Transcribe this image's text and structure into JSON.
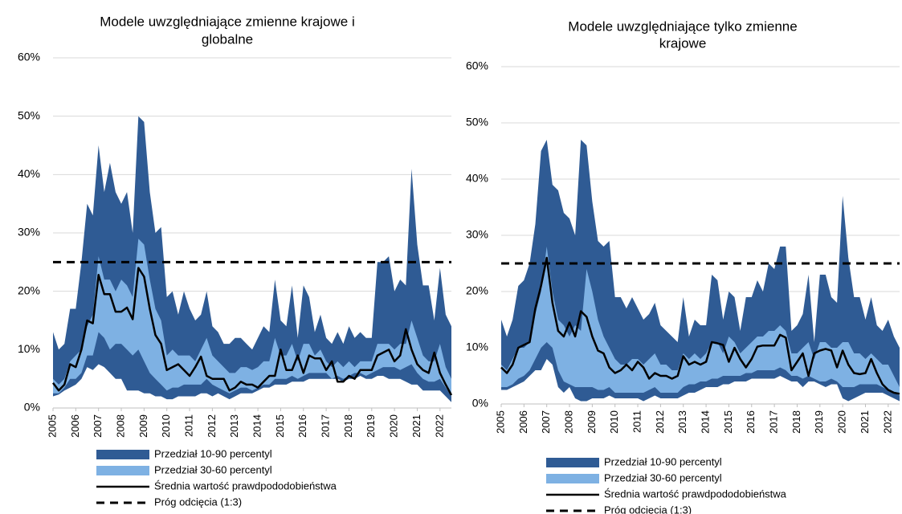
{
  "chart_data": [
    {
      "type": "line",
      "title": [
        "Modele uwzględniające zmienne krajowe i",
        "globalne"
      ],
      "xlim": [
        2005,
        2022.5
      ],
      "xticks": [
        2005,
        2006,
        2007,
        2008,
        2009,
        2010,
        2011,
        2012,
        2013,
        2014,
        2015,
        2016,
        2017,
        2018,
        2019,
        2020,
        2021,
        2022
      ],
      "ylim": [
        0,
        60
      ],
      "yticks": [
        {
          "value": 0,
          "label": "0%"
        },
        {
          "value": 10,
          "label": "10%"
        },
        {
          "value": 20,
          "label": "20%"
        },
        {
          "value": 30,
          "label": "30%"
        },
        {
          "value": 40,
          "label": "40%"
        },
        {
          "value": 50,
          "label": "50%"
        },
        {
          "value": 60,
          "label": "60%"
        }
      ],
      "grid": true,
      "x": [
        2005,
        2005.25,
        2005.5,
        2005.75,
        2006,
        2006.25,
        2006.5,
        2006.75,
        2007,
        2007.25,
        2007.5,
        2007.75,
        2008,
        2008.25,
        2008.5,
        2008.75,
        2009,
        2009.25,
        2009.5,
        2009.75,
        2010,
        2010.25,
        2010.5,
        2010.75,
        2011,
        2011.25,
        2011.5,
        2011.75,
        2012,
        2012.25,
        2012.5,
        2012.75,
        2013,
        2013.25,
        2013.5,
        2013.75,
        2014,
        2014.25,
        2014.5,
        2014.75,
        2015,
        2015.25,
        2015.5,
        2015.75,
        2016,
        2016.25,
        2016.5,
        2016.75,
        2017,
        2017.25,
        2017.5,
        2017.75,
        2018,
        2018.25,
        2018.5,
        2018.75,
        2019,
        2019.25,
        2019.5,
        2019.75,
        2020,
        2020.25,
        2020.5,
        2020.75,
        2021,
        2021.25,
        2021.5,
        2021.75,
        2022,
        2022.25,
        2022.5
      ],
      "series": [
        {
          "name": "Przedział 10-90 percentyl",
          "color": "#2f5b94",
          "style": "band",
          "low": [
            2,
            2.3,
            3,
            3.5,
            4,
            5,
            7,
            6.5,
            7.5,
            7,
            6,
            5,
            5,
            3,
            3,
            3,
            2.5,
            2.5,
            2,
            2,
            1.5,
            1.5,
            2,
            2,
            2,
            2,
            2.5,
            2.5,
            2,
            2.5,
            2,
            1.5,
            2,
            2.5,
            2.5,
            2.5,
            3,
            3.5,
            3.5,
            4,
            4,
            4,
            4.5,
            4.5,
            4.5,
            5,
            5,
            5,
            5,
            5,
            5,
            4.5,
            5,
            5,
            5.5,
            5,
            5,
            5.5,
            5.5,
            5,
            5,
            5,
            4.5,
            4,
            4,
            3,
            3,
            3,
            3,
            2,
            1
          ],
          "high": [
            13,
            10,
            11,
            17,
            17,
            25,
            35,
            33,
            45,
            37,
            42,
            37,
            35,
            37,
            30,
            50,
            49,
            37,
            30,
            31,
            19,
            20,
            16,
            20,
            17,
            15,
            16,
            20,
            14,
            13,
            11,
            11,
            12,
            12,
            11,
            10,
            12,
            14,
            13,
            22,
            15,
            14,
            21,
            12,
            21,
            19,
            13,
            16,
            12,
            11,
            13,
            11,
            14,
            12,
            13,
            12,
            12,
            25,
            25,
            26,
            20,
            22,
            21,
            41,
            28,
            21,
            21,
            15,
            24,
            16,
            14
          ]
        },
        {
          "name": "Przedział 30-60 percentyl",
          "color": "#7eb1e3",
          "style": "band",
          "low": [
            2.5,
            2.5,
            3.5,
            5,
            5,
            6,
            9,
            9,
            13,
            12,
            10,
            11,
            11,
            10,
            9,
            10,
            8,
            6,
            5,
            4,
            3,
            3.5,
            3.5,
            4,
            4,
            4,
            4,
            5,
            4,
            3.5,
            3,
            2.5,
            3,
            3.5,
            3.5,
            3,
            3.5,
            4,
            4,
            5,
            5,
            5,
            5.5,
            5,
            5.5,
            6,
            6,
            6,
            6,
            5,
            5.5,
            5,
            5.5,
            6,
            6,
            5.5,
            6,
            6.5,
            7,
            7,
            7,
            6.5,
            7,
            7.5,
            6,
            5,
            4.5,
            4.5,
            5,
            3.5,
            2
          ],
          "high": [
            5,
            4,
            5,
            8,
            9,
            10,
            14,
            16,
            26,
            22,
            22,
            20,
            22,
            21,
            19,
            29,
            28,
            22,
            17,
            15,
            9,
            10,
            9,
            9,
            9,
            8,
            10,
            12,
            9,
            8,
            7,
            6,
            6,
            7,
            7,
            6.5,
            7,
            8,
            8,
            12,
            9,
            9,
            11,
            8,
            11,
            11,
            9,
            10,
            8,
            7,
            8,
            7,
            8,
            7,
            8,
            8,
            8,
            11,
            11,
            11,
            10,
            11,
            11,
            15,
            12,
            9,
            8,
            8,
            11,
            7,
            5
          ]
        },
        {
          "name": "Średnia wartość prawdpododobieństwa",
          "color": "#000000",
          "style": "line",
          "values": [
            4.3,
            3,
            4,
            7.5,
            7,
            10,
            15,
            14.5,
            22.8,
            19.5,
            19.5,
            16.5,
            16.5,
            17.2,
            15.2,
            24,
            22.5,
            17,
            12.5,
            11,
            6.5,
            7,
            7.5,
            6.5,
            5.5,
            7,
            8.8,
            5.5,
            5,
            5,
            5,
            3,
            3.5,
            4.5,
            4,
            4,
            3.5,
            4.5,
            5.5,
            5.5,
            10,
            6.5,
            6.5,
            9,
            6,
            9,
            8.5,
            8.5,
            6.5,
            8,
            4.5,
            4.5,
            5.5,
            5,
            6.5,
            6.5,
            6.5,
            9,
            9.5,
            10,
            8,
            9,
            13.5,
            10,
            7.5,
            6.5,
            6,
            9.5,
            6,
            4,
            2.2
          ]
        },
        {
          "name": "Próg odcięcia (1:3)",
          "color": "#000000",
          "style": "hline",
          "dashed": true,
          "value": 25
        }
      ]
    },
    {
      "type": "line",
      "title": [
        "Modele uwzględniające tylko zmienne",
        "krajowe"
      ],
      "xlim": [
        2005,
        2022.5
      ],
      "xticks": [
        2005,
        2006,
        2007,
        2008,
        2009,
        2010,
        2011,
        2012,
        2013,
        2014,
        2015,
        2016,
        2017,
        2018,
        2019,
        2020,
        2021,
        2022
      ],
      "ylim": [
        0,
        60
      ],
      "yticks": [
        {
          "value": 0,
          "label": "0%"
        },
        {
          "value": 10,
          "label": "10%"
        },
        {
          "value": 20,
          "label": "20%"
        },
        {
          "value": 30,
          "label": "30%"
        },
        {
          "value": 40,
          "label": "40%"
        },
        {
          "value": 50,
          "label": "50%"
        },
        {
          "value": 60,
          "label": "60%"
        }
      ],
      "grid": true,
      "x": [
        2005,
        2005.25,
        2005.5,
        2005.75,
        2006,
        2006.25,
        2006.5,
        2006.75,
        2007,
        2007.25,
        2007.5,
        2007.75,
        2008,
        2008.25,
        2008.5,
        2008.75,
        2009,
        2009.25,
        2009.5,
        2009.75,
        2010,
        2010.25,
        2010.5,
        2010.75,
        2011,
        2011.25,
        2011.5,
        2011.75,
        2012,
        2012.25,
        2012.5,
        2012.75,
        2013,
        2013.25,
        2013.5,
        2013.75,
        2014,
        2014.25,
        2014.5,
        2014.75,
        2015,
        2015.25,
        2015.5,
        2015.75,
        2016,
        2016.25,
        2016.5,
        2016.75,
        2017,
        2017.25,
        2017.5,
        2017.75,
        2018,
        2018.25,
        2018.5,
        2018.75,
        2019,
        2019.25,
        2019.5,
        2019.75,
        2020,
        2020.25,
        2020.5,
        2020.75,
        2021,
        2021.25,
        2021.5,
        2021.75,
        2022,
        2022.25,
        2022.5
      ],
      "series": [
        {
          "name": "Przedział 10-90 percentyl",
          "color": "#2f5b94",
          "style": "band",
          "low": [
            2.5,
            2.5,
            3,
            3.5,
            4,
            5,
            6,
            6,
            8,
            7,
            3,
            2,
            3,
            1,
            0.5,
            0.5,
            1,
            1,
            1,
            1.5,
            1,
            1,
            1,
            1,
            1,
            0.5,
            1,
            1.5,
            1,
            1,
            1,
            1,
            1.5,
            2,
            2,
            2.5,
            3,
            3,
            3,
            3.5,
            3.5,
            4,
            4,
            4,
            4.5,
            4.5,
            4.5,
            4.5,
            4.5,
            5,
            4.5,
            4,
            4,
            3,
            4,
            4,
            3.5,
            3,
            3.5,
            3.5,
            1,
            0.5,
            1,
            1.5,
            2,
            2,
            2,
            2,
            1.5,
            1,
            0.5
          ],
          "high": [
            15,
            12,
            15,
            21,
            22,
            25,
            32,
            45,
            47,
            39,
            38,
            34,
            33,
            30,
            47,
            46,
            36,
            29,
            28,
            29,
            19,
            19,
            17,
            19,
            17,
            15,
            16,
            18,
            14,
            13,
            12,
            11,
            19,
            12,
            15,
            14,
            14,
            23,
            22,
            15,
            20,
            19,
            13,
            19,
            19,
            22,
            20,
            25,
            24,
            28,
            28,
            13,
            14,
            16,
            23,
            11,
            23,
            23,
            19,
            18,
            37,
            26,
            19,
            19,
            15,
            19,
            14,
            13,
            15,
            12,
            10
          ]
        },
        {
          "name": "Przedział 30-60 percentyl",
          "color": "#7eb1e3",
          "style": "band",
          "low": [
            3,
            3,
            3.5,
            4.5,
            5,
            6,
            8,
            10,
            11,
            10,
            6,
            4,
            3.5,
            3,
            3,
            3,
            3,
            2.5,
            2.5,
            3,
            2,
            2,
            2,
            2,
            2,
            2,
            2.5,
            3,
            2,
            2,
            2,
            2,
            3,
            3.5,
            3.5,
            4,
            4,
            4.5,
            4.5,
            5,
            5,
            5,
            5,
            5.5,
            5.5,
            6,
            6,
            6,
            6,
            6.5,
            6,
            5,
            5,
            4.5,
            5,
            4.5,
            4,
            4,
            4.5,
            4,
            3,
            3,
            3,
            3.5,
            3.5,
            3.5,
            3.5,
            3,
            2.5,
            2,
            1.5
          ],
          "high": [
            7,
            6,
            8,
            10,
            10,
            11,
            16,
            20,
            28,
            20,
            15,
            14,
            12,
            14,
            13,
            24,
            20,
            15,
            12,
            10,
            8,
            7,
            7,
            8,
            8,
            7,
            8,
            9,
            7,
            7,
            6,
            6,
            9,
            8,
            9,
            8,
            9,
            11,
            11,
            9,
            12,
            11,
            9,
            10,
            11,
            12,
            12,
            13,
            13,
            14,
            13,
            9,
            9,
            10,
            11,
            8,
            11,
            11,
            10,
            10,
            11,
            11,
            9,
            9,
            8,
            9,
            8,
            7,
            7,
            5,
            3
          ]
        },
        {
          "name": "Średnia wartość prawdpododobieństwa",
          "color": "#000000",
          "style": "line",
          "values": [
            6.5,
            5.5,
            7,
            10,
            10.5,
            11,
            17,
            21,
            26,
            18,
            13,
            12,
            14.5,
            12,
            16.5,
            15.5,
            12,
            9.5,
            9,
            6.5,
            5.5,
            6,
            7,
            6,
            7.5,
            6.5,
            4.5,
            5.5,
            5,
            5,
            4.5,
            5,
            8.5,
            7,
            7.5,
            7,
            7.5,
            11,
            10.8,
            10.5,
            7.5,
            10,
            8,
            6.5,
            8,
            10.2,
            10.4,
            10.4,
            10.4,
            12.3,
            11.8,
            6,
            7.5,
            9,
            5,
            9,
            9.5,
            9.8,
            9.5,
            6.5,
            9.5,
            7,
            5.5,
            5.3,
            5.5,
            8,
            5.5,
            3.5,
            2.5,
            2,
            1.8
          ]
        },
        {
          "name": "Próg odcięcia (1:3)",
          "color": "#000000",
          "style": "hline",
          "dashed": true,
          "value": 25
        }
      ]
    }
  ]
}
